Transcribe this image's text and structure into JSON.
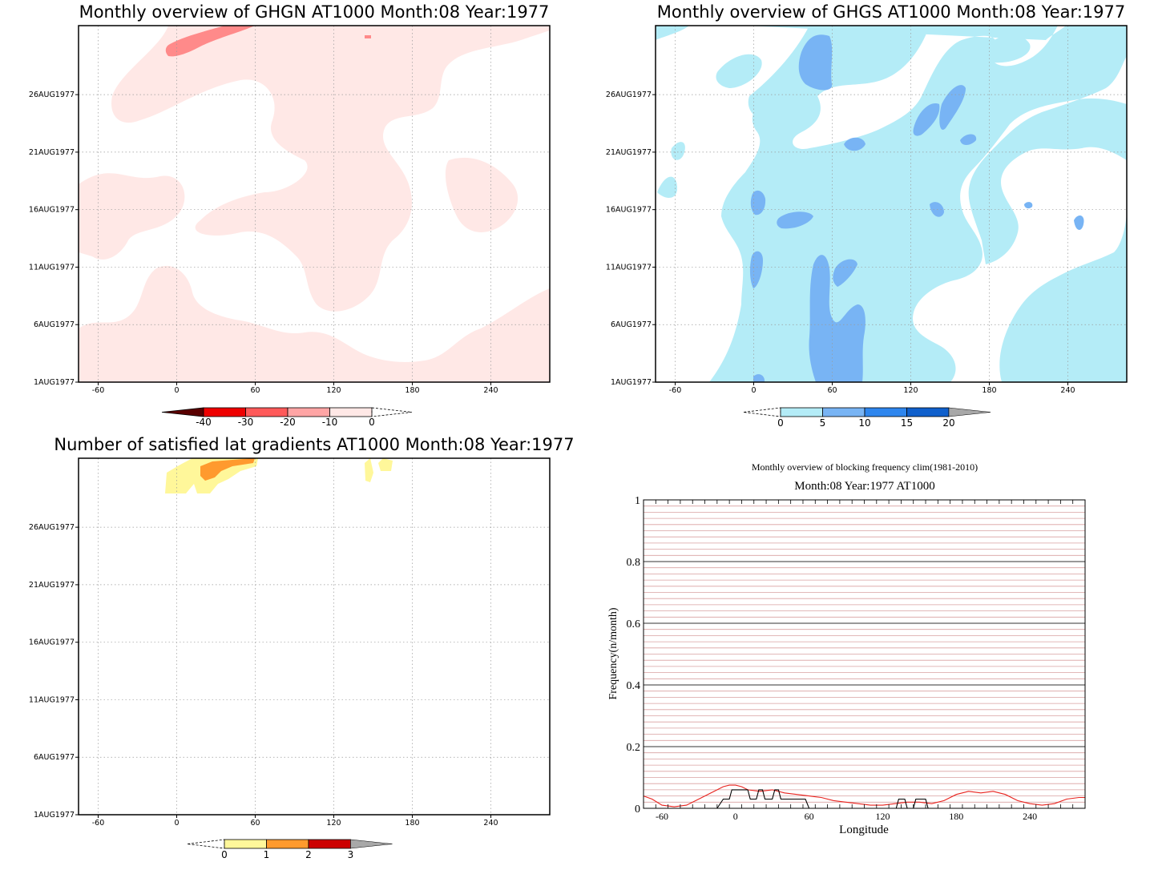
{
  "colors": {
    "ghgn_pale": "#ffe8e6",
    "ghgn_mid": "#ff8a8a",
    "ghgs_pale": "#b4ecf7",
    "ghgs_mid": "#78b4f4",
    "grad_yellow": "#fff79a",
    "grad_orange": "#ff9a2e",
    "block_red": "#e8231e",
    "block_black": "#000000"
  },
  "chart_data": [
    {
      "id": "ghgn",
      "type": "heatmap",
      "title": "Monthly overview of GHGN AT1000 Month:08 Year:1977",
      "x_ticks": [
        "-60",
        "0",
        "60",
        "120",
        "180",
        "240"
      ],
      "y_ticks": [
        "26AUG1977",
        "21AUG1977",
        "16AUG1977",
        "11AUG1977",
        "6AUG1977",
        "1AUG1977"
      ],
      "colorbar": {
        "labels": [
          "-40",
          "-30",
          "-20",
          "-10",
          "0"
        ],
        "colors": [
          "#5a0000",
          "#ee0000",
          "#ff5a5a",
          "#ffa5a5",
          "#ffe8e6"
        ],
        "extends": [
          "low-filled",
          "high-open"
        ]
      }
    },
    {
      "id": "ghgs",
      "type": "heatmap",
      "title": "Monthly overview of GHGS AT1000 Month:08 Year:1977",
      "x_ticks": [
        "-60",
        "0",
        "60",
        "120",
        "180",
        "240"
      ],
      "y_ticks": [
        "26AUG1977",
        "21AUG1977",
        "16AUG1977",
        "11AUG1977",
        "6AUG1977",
        "1AUG1977"
      ],
      "colorbar": {
        "labels": [
          "0",
          "5",
          "10",
          "15",
          "20"
        ],
        "colors": [
          "#b4ecf7",
          "#78b4f4",
          "#2e86ee",
          "#1060cc"
        ],
        "extends": [
          "low-open",
          "high-grey"
        ]
      }
    },
    {
      "id": "grad",
      "type": "heatmap",
      "title": "Number of satisfied lat gradients AT1000 Month:08 Year:1977",
      "x_ticks": [
        "-60",
        "0",
        "60",
        "120",
        "180",
        "240"
      ],
      "y_ticks": [
        "26AUG1977",
        "21AUG1977",
        "16AUG1977",
        "11AUG1977",
        "6AUG1977",
        "1AUG1977"
      ],
      "colorbar": {
        "labels": [
          "0",
          "1",
          "2",
          "3"
        ],
        "colors": [
          "#fff79a",
          "#ff9a2e",
          "#cc0000"
        ],
        "extends": [
          "low-open",
          "high-grey"
        ]
      }
    },
    {
      "id": "blocking",
      "type": "line",
      "title": "Monthly overview of blocking frequency clim(1981-2010)",
      "subtitle": "Month:08 Year:1977  AT1000",
      "xlabel": "Longitude",
      "ylabel": "Frequency(n/month)",
      "xlim": [
        -75,
        285
      ],
      "ylim": [
        0,
        1
      ],
      "x_ticks": [
        "-60",
        "0",
        "60",
        "120",
        "180",
        "240"
      ],
      "y_ticks": [
        "0",
        "0.2",
        "0.4",
        "0.6",
        "0.8",
        "1"
      ],
      "series": [
        {
          "color": "#e8231e",
          "x": [
            -75,
            -68,
            -60,
            -50,
            -40,
            -30,
            -20,
            -10,
            -5,
            0,
            5,
            10,
            20,
            30,
            40,
            50,
            60,
            70,
            80,
            90,
            100,
            110,
            120,
            130,
            140,
            150,
            160,
            170,
            180,
            190,
            200,
            210,
            220,
            230,
            240,
            250,
            260,
            270,
            280,
            285
          ],
          "y": [
            0.04,
            0.03,
            0.01,
            0.005,
            0.01,
            0.03,
            0.05,
            0.07,
            0.075,
            0.075,
            0.07,
            0.06,
            0.055,
            0.06,
            0.05,
            0.045,
            0.04,
            0.035,
            0.025,
            0.02,
            0.015,
            0.01,
            0.01,
            0.015,
            0.02,
            0.02,
            0.015,
            0.025,
            0.045,
            0.055,
            0.05,
            0.055,
            0.045,
            0.025,
            0.015,
            0.01,
            0.015,
            0.03,
            0.035,
            0.035
          ]
        },
        {
          "color": "#000000",
          "x": [
            -75,
            -15,
            -10,
            -5,
            -3,
            10,
            12,
            17,
            19,
            22,
            24,
            30,
            32,
            35,
            37,
            55,
            57,
            60,
            131,
            133,
            138,
            140,
            145,
            147,
            155,
            157,
            285
          ],
          "y": [
            0,
            0,
            0.03,
            0.03,
            0.06,
            0.06,
            0.03,
            0.03,
            0.06,
            0.06,
            0.03,
            0.03,
            0.06,
            0.06,
            0.03,
            0.03,
            0.03,
            0,
            0,
            0.03,
            0.03,
            0,
            0,
            0.03,
            0.03,
            0,
            0
          ]
        }
      ]
    }
  ]
}
